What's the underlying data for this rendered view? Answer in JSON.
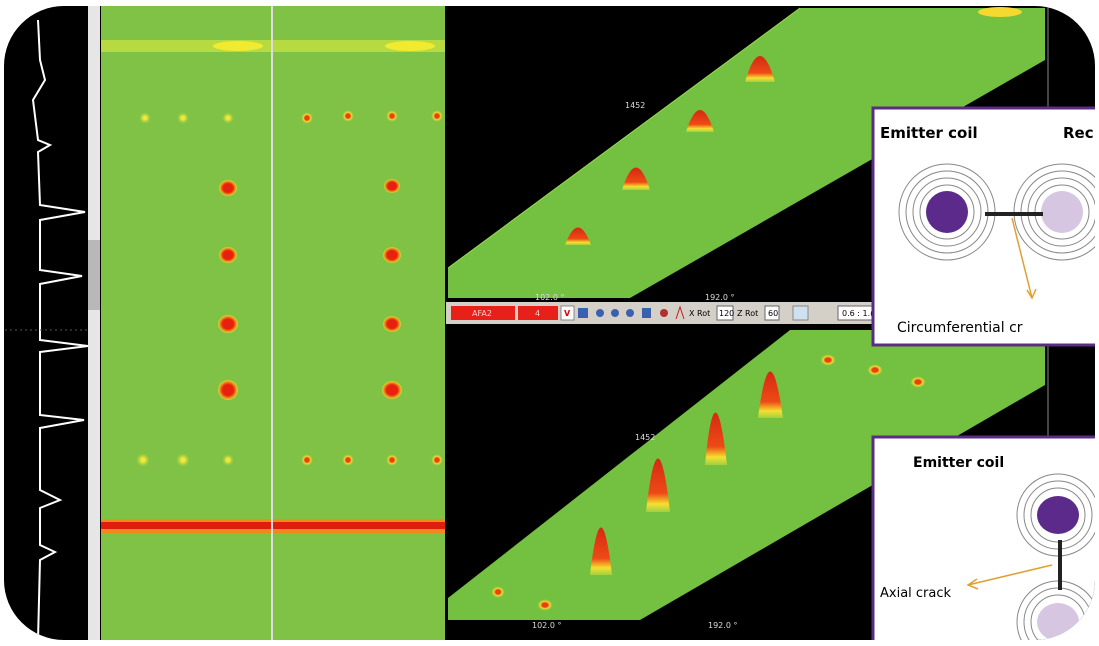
{
  "views": [
    {
      "depth_label": "1452",
      "x_labels": [
        "102.0 °",
        "192.0 °"
      ]
    },
    {
      "depth_label": "1452",
      "x_labels": [
        "102.0 °",
        "192.0 °"
      ]
    }
  ],
  "toolbar": {
    "channel": "AFA2",
    "number": "4",
    "mode": "V",
    "x_rot_label": "X Rot",
    "x_rot_value": "120",
    "z_rot_label": "Z Rot",
    "z_rot_value": "60",
    "scale": "0.6 : 1.("
  },
  "insets": [
    {
      "emitter": "Emitter coil",
      "receiver": "Rec",
      "crack": "Circumferential cr"
    },
    {
      "emitter": "Emitter coil",
      "crack": "Axial crack"
    }
  ]
}
